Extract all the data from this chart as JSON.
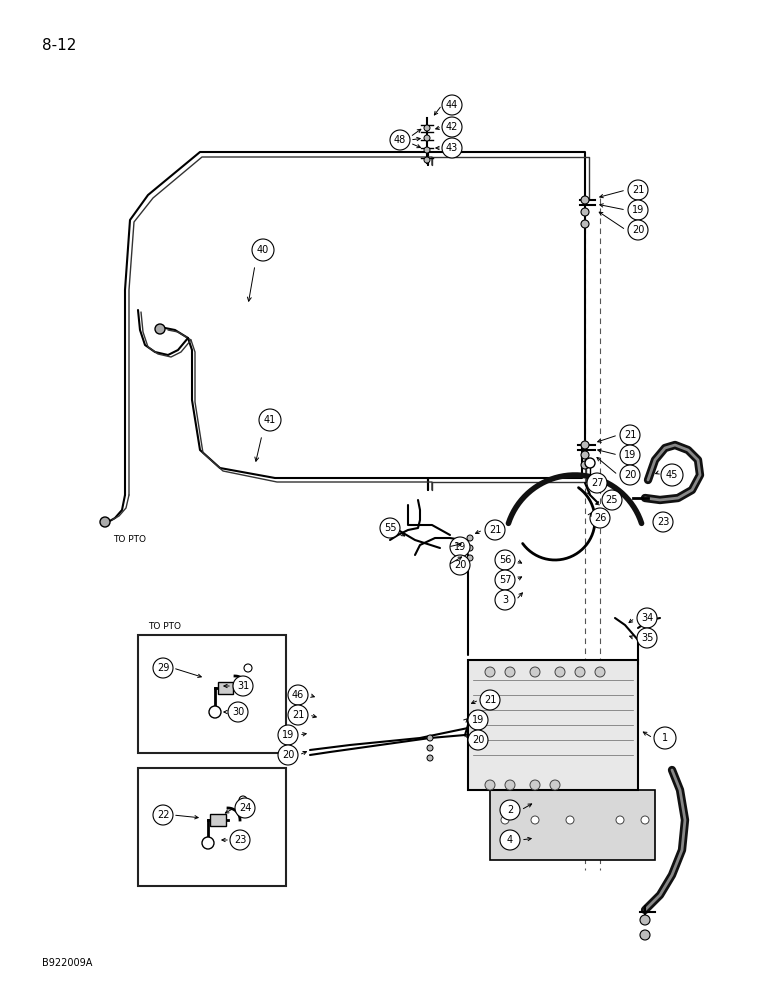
{
  "page_label": "8-12",
  "bottom_label": "B922009A",
  "bg_color": "#ffffff",
  "line_color": "#000000",
  "figsize": [
    7.72,
    10.0
  ],
  "dpi": 100
}
